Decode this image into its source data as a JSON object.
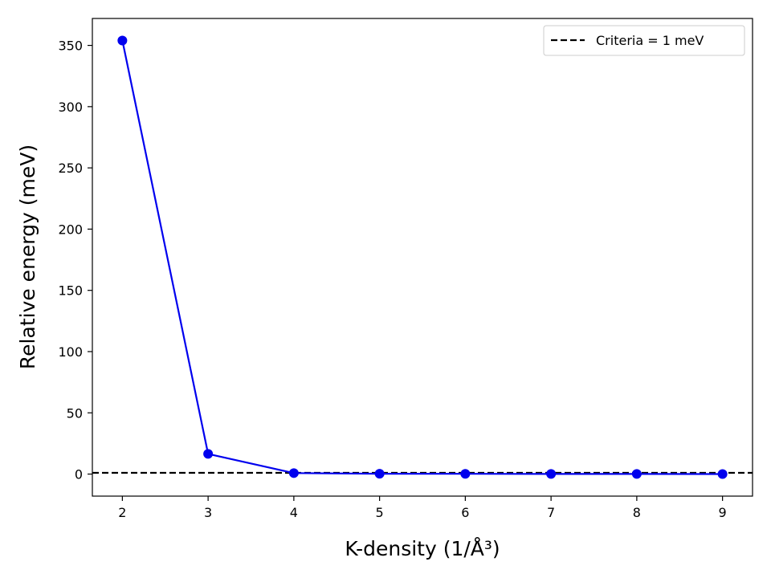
{
  "chart_data": {
    "type": "line",
    "x": [
      2,
      3,
      4,
      5,
      6,
      7,
      8,
      9
    ],
    "series": [
      {
        "values": [
          354.0,
          16.5,
          0.8,
          0.3,
          0.2,
          0.1,
          0.1,
          0.0
        ],
        "color": "#0000ee",
        "marker": "circle"
      }
    ],
    "reference_line": {
      "y": 1,
      "label": "Criteria = 1 meV",
      "color": "#000000",
      "style": "dashed"
    },
    "xlabel": "K-density (1/Å³)",
    "ylabel": "Relative energy (meV)",
    "xlim": [
      1.65,
      9.35
    ],
    "ylim": [
      -18,
      372
    ],
    "xticks": [
      2,
      3,
      4,
      5,
      6,
      7,
      8,
      9
    ],
    "yticks": [
      0,
      50,
      100,
      150,
      200,
      250,
      300,
      350
    ],
    "grid": false,
    "legend_position": "top-right"
  }
}
